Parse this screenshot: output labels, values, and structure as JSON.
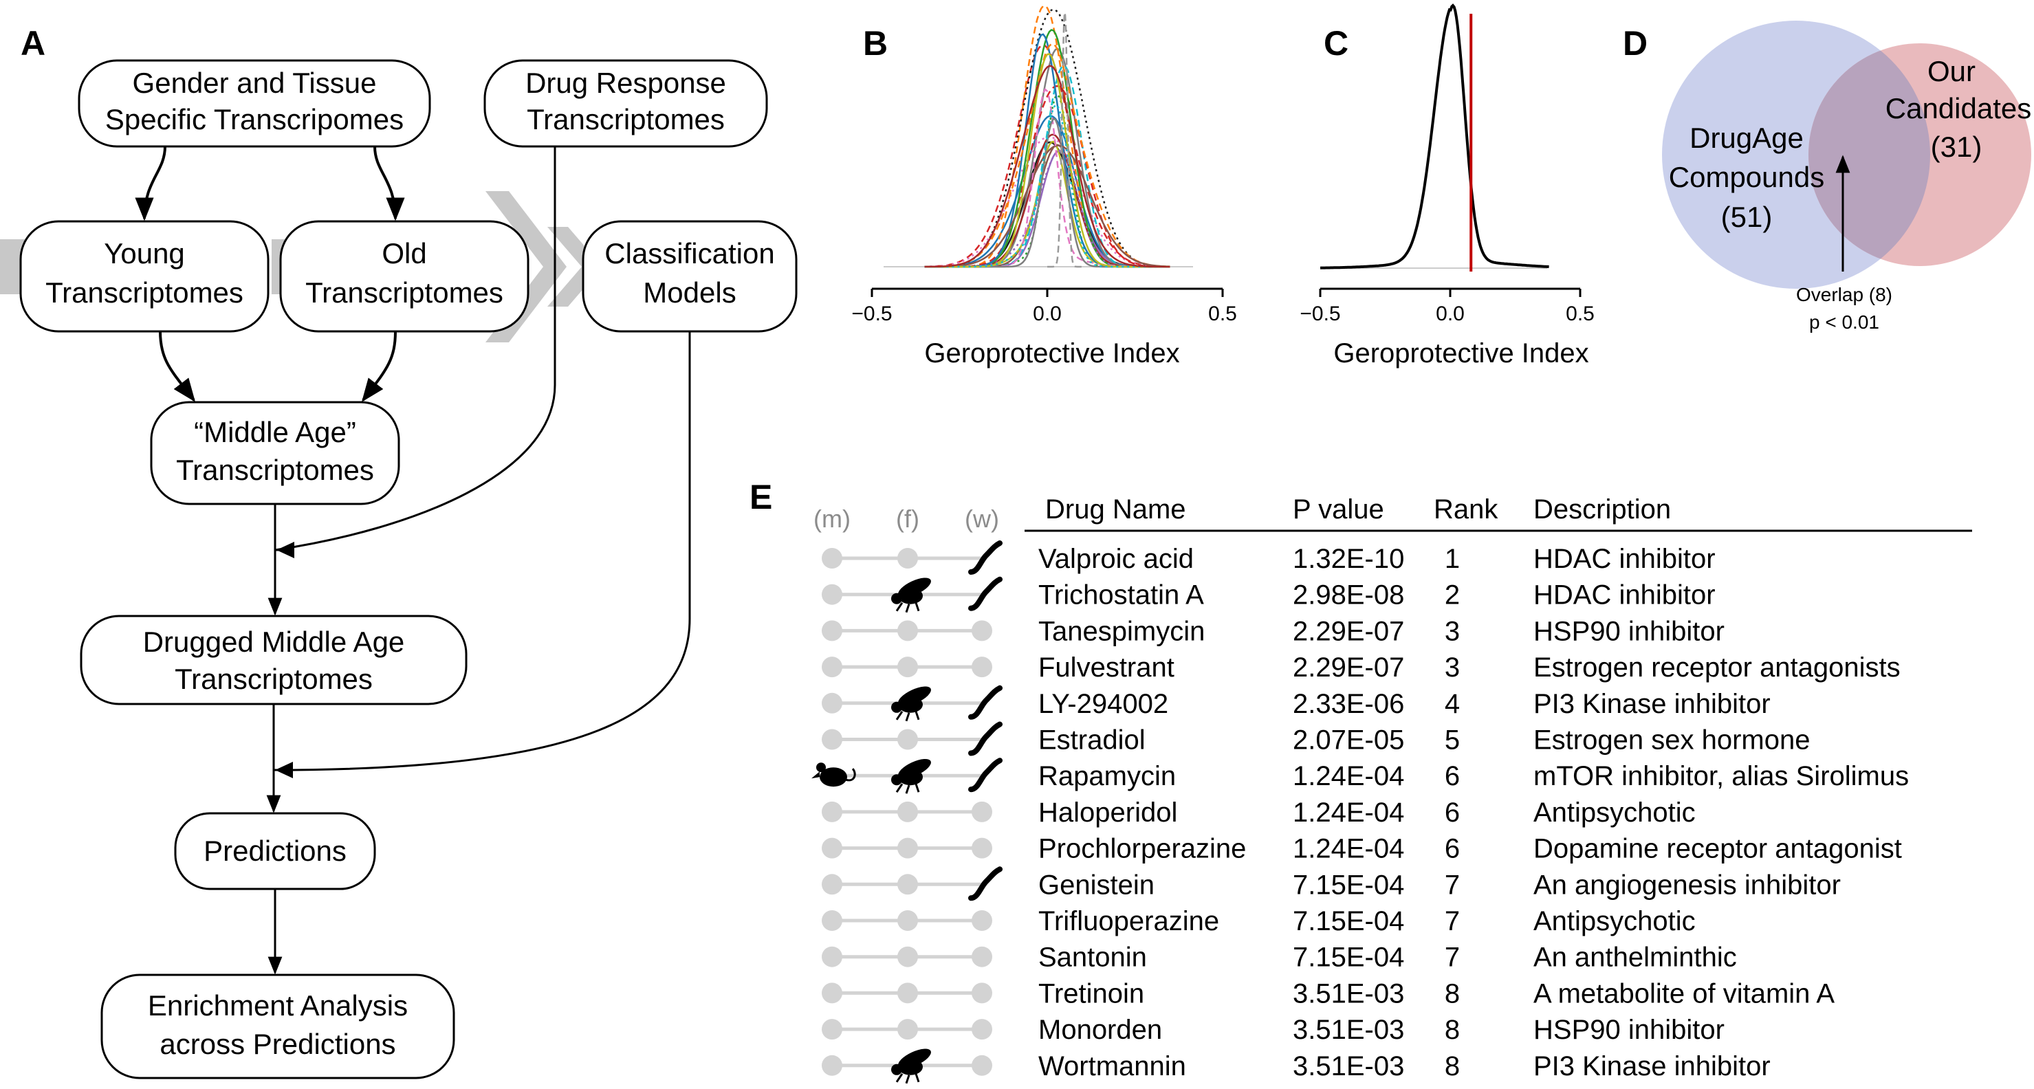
{
  "panels": {
    "a": "A",
    "b": "B",
    "c": "C",
    "d": "D",
    "e": "E"
  },
  "flow": {
    "gender_l1": "Gender and Tissue",
    "gender_l2": "Specific Transcripomes",
    "drug_l1": "Drug Response",
    "drug_l2": "Transcriptomes",
    "young_l1": "Young",
    "young_l2": "Transcriptomes",
    "old_l1": "Old",
    "old_l2": "Transcriptomes",
    "class_l1": "Classification",
    "class_l2": "Models",
    "middle_l1": "“Middle Age”",
    "middle_l2": "Transcriptomes",
    "drugged_l1": "Drugged Middle Age",
    "drugged_l2": "Transcriptomes",
    "pred": "Predictions",
    "enrich_l1": "Enrichment Analysis",
    "enrich_l2": "across Predictions"
  },
  "density_b": {
    "xlabel": "Geroprotective Index",
    "ticks": [
      "−0.5",
      "0.0",
      "0.5"
    ],
    "xlim": [
      -0.5,
      0.5
    ],
    "colors": [
      "#1f1f1f",
      "#d62728",
      "#2ca02c",
      "#1f77b4",
      "#ff7f0e",
      "#9467bd",
      "#8c564b",
      "#e377c2",
      "#7f7f7f",
      "#bcbd22",
      "#17becf",
      "#a52a2a"
    ]
  },
  "density_c": {
    "xlabel": "Geroprotective Index",
    "ticks": [
      "−0.5",
      "0.0",
      "0.5"
    ],
    "xlim": [
      -0.5,
      0.5
    ],
    "threshold": 0.08,
    "line_color": "#000000",
    "threshold_color": "#c00000"
  },
  "venn": {
    "left_l1": "DrugAge",
    "left_l2": "Compounds",
    "left_n": "(51)",
    "right_l1": "Our",
    "right_l2": "Candidates",
    "right_n": "(31)",
    "overlap_l1": "Overlap (8)",
    "overlap_l2": "p < 0.01",
    "left_color": "#c7cdeb",
    "right_color": "#e8b6b9"
  },
  "table": {
    "org_headers": [
      "(m)",
      "(f)",
      "(w)"
    ],
    "headers": [
      "Drug Name",
      "P value",
      "Rank",
      "Description"
    ],
    "rows": [
      {
        "drug": "Valproic acid",
        "p": "1.32E-10",
        "rank": "1",
        "desc": "HDAC inhibitor",
        "org": [
          0,
          0,
          1
        ]
      },
      {
        "drug": "Trichostatin A",
        "p": "2.98E-08",
        "rank": "2",
        "desc": "HDAC inhibitor",
        "org": [
          0,
          1,
          1
        ]
      },
      {
        "drug": "Tanespimycin",
        "p": "2.29E-07",
        "rank": "3",
        "desc": "HSP90 inhibitor",
        "org": [
          0,
          0,
          0
        ]
      },
      {
        "drug": "Fulvestrant",
        "p": "2.29E-07",
        "rank": "3",
        "desc": "Estrogen receptor antagonists",
        "org": [
          0,
          0,
          0
        ]
      },
      {
        "drug": "LY-294002",
        "p": "2.33E-06",
        "rank": "4",
        "desc": "PI3 Kinase inhibitor",
        "org": [
          0,
          1,
          1
        ]
      },
      {
        "drug": "Estradiol",
        "p": "2.07E-05",
        "rank": "5",
        "desc": "Estrogen sex hormone",
        "org": [
          0,
          0,
          1
        ]
      },
      {
        "drug": "Rapamycin",
        "p": "1.24E-04",
        "rank": "6",
        "desc": "mTOR inhibitor, alias Sirolimus",
        "org": [
          1,
          1,
          1
        ]
      },
      {
        "drug": "Haloperidol",
        "p": "1.24E-04",
        "rank": "6",
        "desc": "Antipsychotic",
        "org": [
          0,
          0,
          0
        ]
      },
      {
        "drug": "Prochlorperazine",
        "p": "1.24E-04",
        "rank": "6",
        "desc": "Dopamine receptor antagonist",
        "org": [
          0,
          0,
          0
        ]
      },
      {
        "drug": "Genistein",
        "p": "7.15E-04",
        "rank": "7",
        "desc": "An angiogenesis inhibitor",
        "org": [
          0,
          0,
          1
        ]
      },
      {
        "drug": "Trifluoperazine",
        "p": "7.15E-04",
        "rank": "7",
        "desc": "Antipsychotic",
        "org": [
          0,
          0,
          0
        ]
      },
      {
        "drug": "Santonin",
        "p": "7.15E-04",
        "rank": "7",
        "desc": "An anthelminthic",
        "org": [
          0,
          0,
          0
        ]
      },
      {
        "drug": "Tretinoin",
        "p": "3.51E-03",
        "rank": "8",
        "desc": "A metabolite of vitamin A",
        "org": [
          0,
          0,
          0
        ]
      },
      {
        "drug": "Monorden",
        "p": "3.51E-03",
        "rank": "8",
        "desc": "HSP90 inhibitor",
        "org": [
          0,
          0,
          0
        ]
      },
      {
        "drug": "Wortmannin",
        "p": "3.51E-03",
        "rank": "8",
        "desc": "PI3 Kinase inhibitor",
        "org": [
          0,
          1,
          0
        ]
      }
    ]
  }
}
